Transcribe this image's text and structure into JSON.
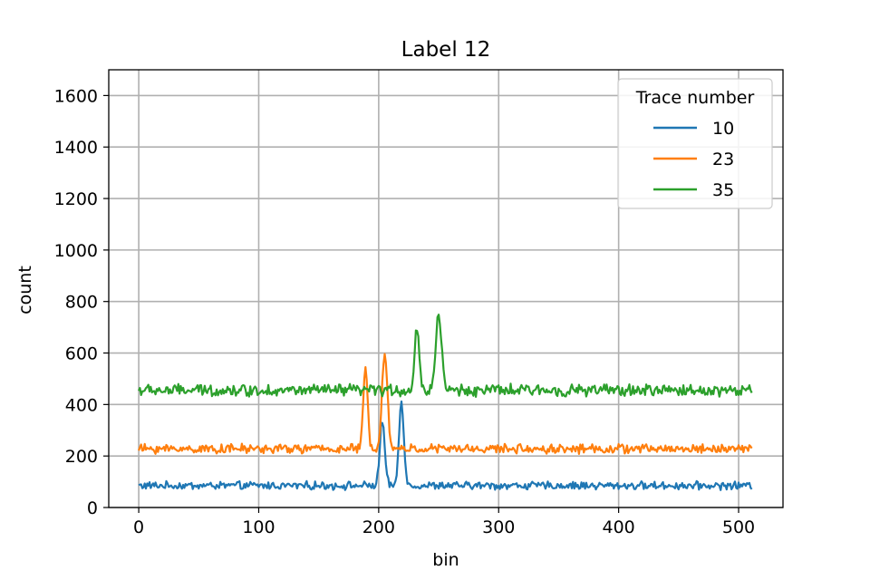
{
  "chart_data": {
    "type": "line",
    "title": "Label 12",
    "xlabel": "bin",
    "ylabel": "count",
    "xlim": [
      -25,
      537
    ],
    "ylim": [
      0,
      1700
    ],
    "xticks": [
      0,
      100,
      200,
      300,
      400,
      500
    ],
    "yticks": [
      0,
      200,
      400,
      600,
      800,
      1000,
      1200,
      1400,
      1600
    ],
    "grid": true,
    "legend": {
      "title": "Trace number",
      "placement": "upper-right"
    },
    "series": [
      {
        "name": "10",
        "color": "#1f77b4",
        "baseline": 85,
        "noise": 12,
        "peaks": [
          {
            "x": 203,
            "height": 250,
            "width": 2.0
          },
          {
            "x": 219,
            "height": 330,
            "width": 2.0
          }
        ],
        "x_range": [
          0,
          511
        ]
      },
      {
        "name": "23",
        "color": "#ff7f0e",
        "baseline": 228,
        "noise": 14,
        "peaks": [
          {
            "x": 189,
            "height": 310,
            "width": 1.8
          },
          {
            "x": 205,
            "height": 380,
            "width": 2.2
          }
        ],
        "x_range": [
          0,
          511
        ]
      },
      {
        "name": "35",
        "color": "#2ca02c",
        "baseline": 455,
        "noise": 18,
        "peaks": [
          {
            "x": 232,
            "height": 250,
            "width": 1.8
          },
          {
            "x": 250,
            "height": 290,
            "width": 2.5
          }
        ],
        "x_range": [
          0,
          511
        ]
      }
    ]
  }
}
